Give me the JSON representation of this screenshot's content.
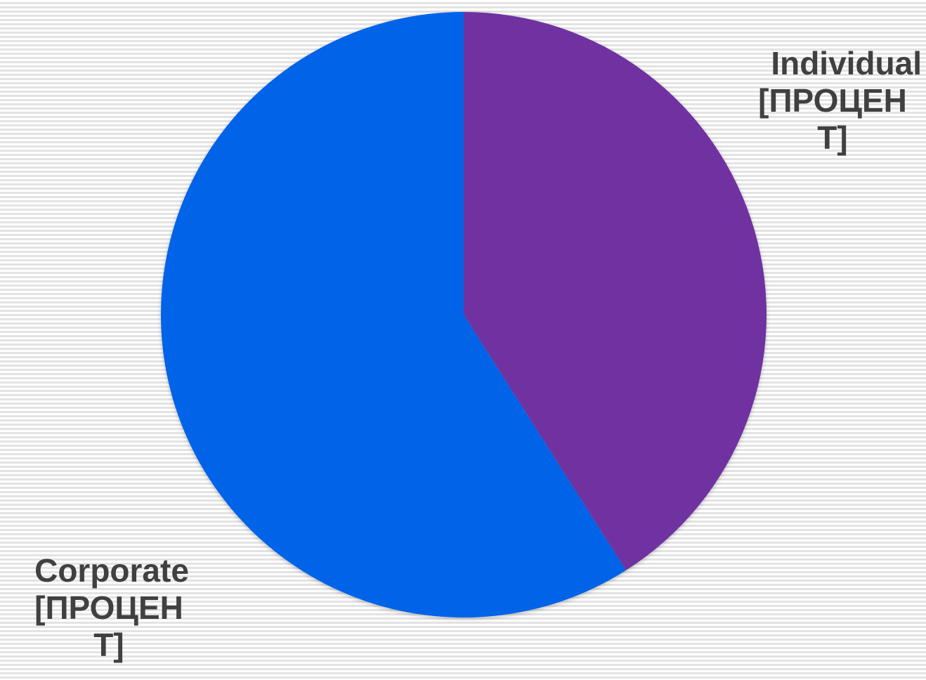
{
  "chart_data": {
    "type": "pie",
    "title": "",
    "slices": [
      {
        "label": "Individual",
        "value": 41,
        "value_text": "[ПРОЦЕНТ]",
        "color": "#7030a0"
      },
      {
        "label": "Corporate",
        "value": 59,
        "value_text": "[ПРОЦЕНТ]",
        "color": "#0563e8"
      }
    ],
    "start_angle": "12 o'clock",
    "direction": "clockwise",
    "legend": "none",
    "data_labels": "outside"
  }
}
